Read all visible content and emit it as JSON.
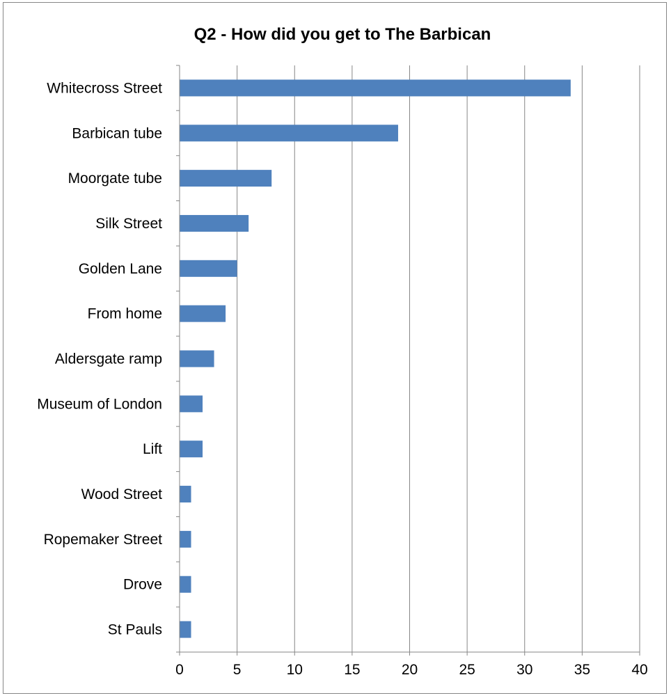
{
  "chart_data": {
    "type": "bar",
    "orientation": "horizontal",
    "title": "Q2 - How did you get to The Barbican",
    "xlabel": "",
    "ylabel": "",
    "categories": [
      "Whitecross Street",
      "Barbican tube",
      "Moorgate tube",
      "Silk Street",
      "Golden Lane",
      "From home",
      "Aldersgate ramp",
      "Museum of London",
      "Lift",
      "Wood Street",
      "Ropemaker Street",
      "Drove",
      "St Pauls"
    ],
    "values": [
      34,
      19,
      8,
      6,
      5,
      4,
      3,
      2,
      2,
      1,
      1,
      1,
      1
    ],
    "xlim": [
      0,
      40
    ],
    "x_ticks": [
      0,
      5,
      10,
      15,
      20,
      25,
      30,
      35,
      40
    ],
    "grid": "vertical major gridlines",
    "legend": "none",
    "colors": {
      "bar": "#4F81BD",
      "gridline": "#868686",
      "axis": "#868686",
      "text": "#000000",
      "border": "#868686"
    }
  }
}
